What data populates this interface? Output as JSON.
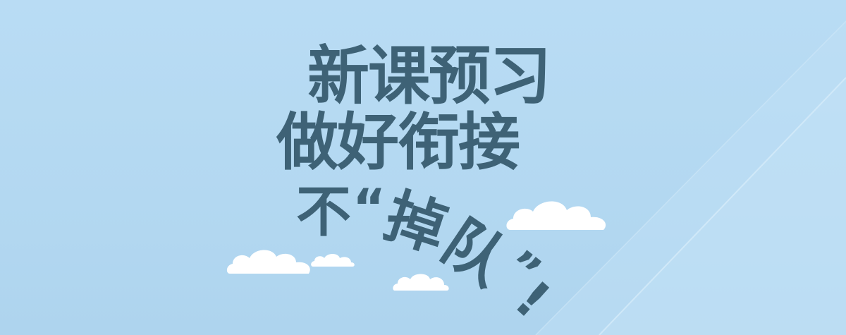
{
  "banner": {
    "line1": "新课预习",
    "line2": "做好衔接",
    "line3": {
      "char1": "不",
      "open_quote": "“",
      "char2": "掉",
      "char3": "队",
      "close_quote": "”",
      "exclaim": "!"
    }
  },
  "colors": {
    "background": "#b9dcf4",
    "text": "#3e6276",
    "cloud": "#ffffff"
  }
}
